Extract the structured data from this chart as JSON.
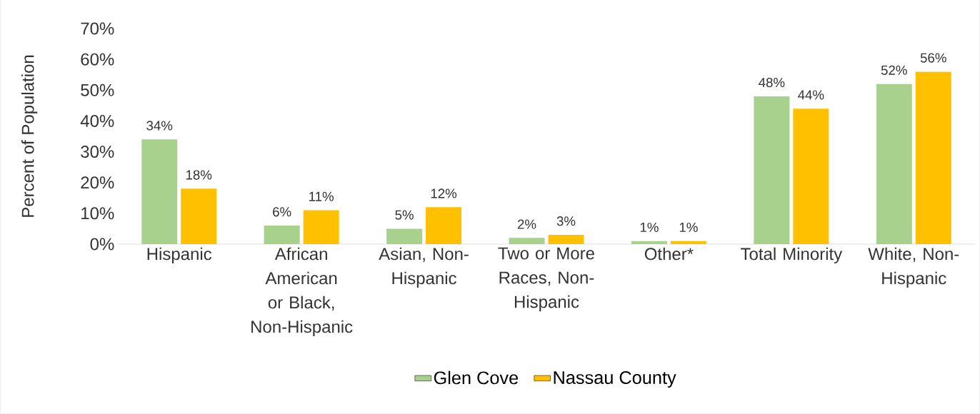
{
  "chart_data": {
    "type": "bar",
    "ylabel": "Percent of Population",
    "categories": [
      "Hispanic",
      "African American or Black, Non-Hispanic",
      "Asian, Non-Hispanic",
      "Two or More Races, Non-Hispanic",
      "Other*",
      "Total Minority",
      "White, Non-Hispanic"
    ],
    "series": [
      {
        "name": "Glen Cove",
        "color": "#a9d18e",
        "values": [
          34,
          6,
          5,
          2,
          1,
          48,
          52
        ],
        "value_labels": [
          "34%",
          "6%",
          "5%",
          "2%",
          "1%",
          "48%",
          "52%"
        ]
      },
      {
        "name": "Nassau County",
        "color": "#ffc000",
        "values": [
          18,
          11,
          12,
          3,
          1,
          44,
          56
        ],
        "value_labels": [
          "18%",
          "11%",
          "12%",
          "3%",
          "1%",
          "44%",
          "56%"
        ]
      }
    ],
    "ylim": [
      0,
      70
    ],
    "yticks": [
      {
        "value": 0,
        "label": "0%"
      },
      {
        "value": 10,
        "label": "10%"
      },
      {
        "value": 20,
        "label": "20%"
      },
      {
        "value": 30,
        "label": "30%"
      },
      {
        "value": 40,
        "label": "40%"
      },
      {
        "value": 50,
        "label": "50%"
      },
      {
        "value": 60,
        "label": "60%"
      },
      {
        "value": 70,
        "label": "70%"
      }
    ],
    "legend": "bottom"
  }
}
